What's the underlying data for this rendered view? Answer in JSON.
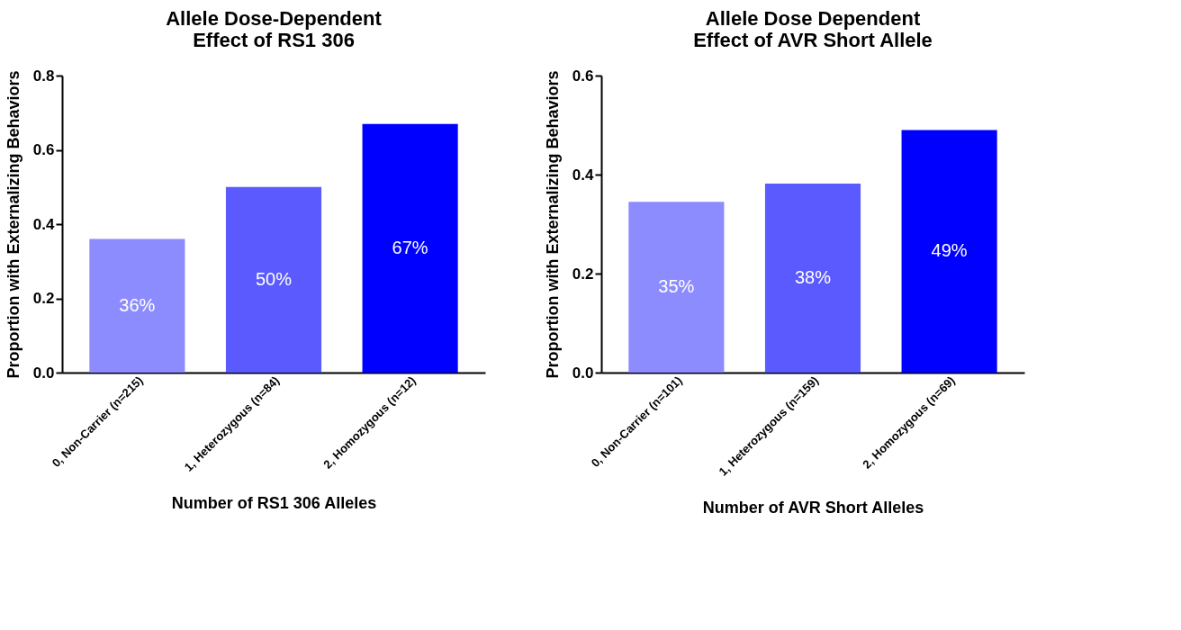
{
  "chart_data": [
    {
      "type": "bar",
      "title": "Allele Dose-Dependent\nEffect of RS1 306",
      "xlabel": "Number of RS1 306 Alleles",
      "ylabel": "Proportion with Externalizing Behaviors",
      "categories": [
        "0, Non-Carrier (n=215)",
        "1, Heterozygous (n=84)",
        "2, Homozygous (n=12)"
      ],
      "values": [
        0.36,
        0.5,
        0.67
      ],
      "colors": [
        "#8c8cff",
        "#5a5aff",
        "#0000ff"
      ],
      "value_labels": [
        "36%",
        "50%",
        "67%"
      ],
      "ylim": [
        0,
        0.8
      ],
      "yticks": [
        {
          "value": 0,
          "label": "0.0"
        },
        0.2,
        0.4,
        0.6,
        0.8
      ]
    },
    {
      "type": "bar",
      "title": "Allele Dose Dependent\nEffect of AVR Short Allele",
      "xlabel": "Number of AVR Short Alleles",
      "ylabel": "Proportion with Externalizing Behaviors",
      "categories": [
        "0, Non-Carrier (n=101)",
        "1, Heterozygous (n=159)",
        "2, Homozygous (n=69)"
      ],
      "values": [
        0.345,
        0.382,
        0.49
      ],
      "colors": [
        "#8c8cff",
        "#5a5aff",
        "#0000ff"
      ],
      "value_labels": [
        "35%",
        "38%",
        "49%"
      ],
      "ylim": [
        0,
        0.6
      ],
      "yticks": [
        {
          "value": 0,
          "label": "0.0"
        },
        0.2,
        0.4,
        0.6
      ]
    }
  ]
}
